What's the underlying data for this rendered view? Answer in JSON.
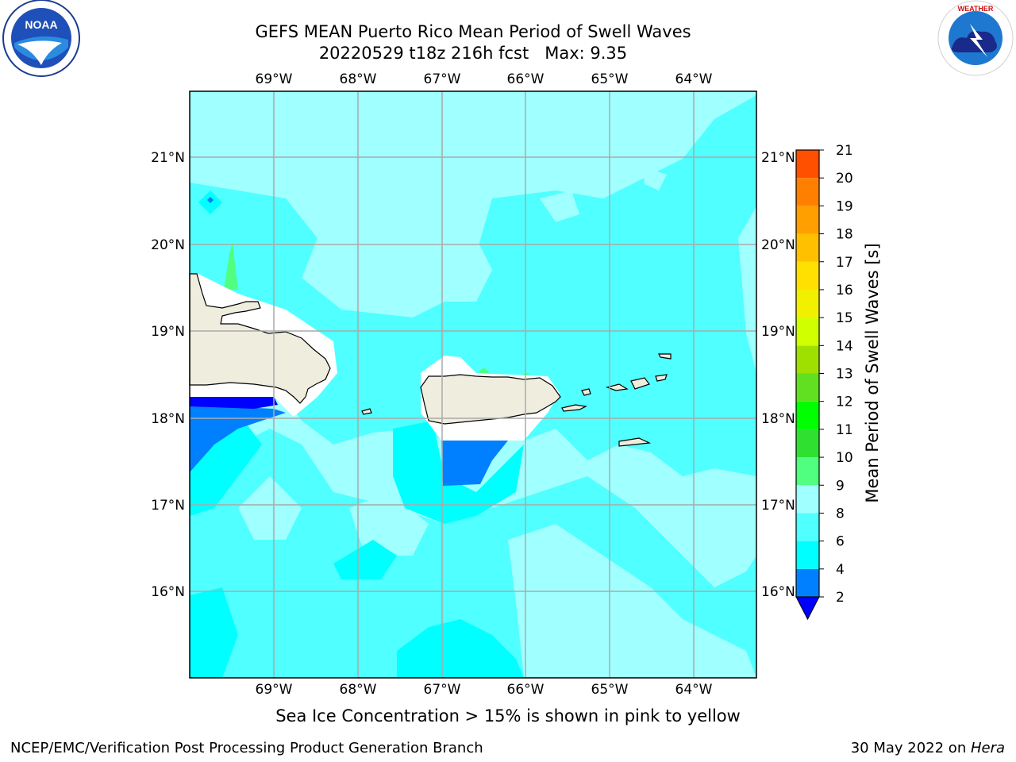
{
  "title": {
    "line1": "GEFS MEAN Puerto Rico Mean Period of Swell Waves",
    "line2": "20220529 t18z 216h fcst   Max: 9.35"
  },
  "logos": {
    "left": "NOAA",
    "right": "NATIONAL WEATHER SERVICE"
  },
  "map": {
    "lon_labels": [
      "69°W",
      "68°W",
      "67°W",
      "66°W",
      "65°W",
      "64°W"
    ],
    "lat_labels": [
      "21°N",
      "20°N",
      "19°N",
      "18°N",
      "17°N",
      "16°N"
    ],
    "lon_range": [
      -69.9,
      -63.3
    ],
    "lat_range": [
      15.0,
      21.75
    ]
  },
  "colorbar": {
    "title": "Mean Period of Swell Waves [s]",
    "levels": [
      "2",
      "4",
      "6",
      "8",
      "9",
      "10",
      "11",
      "12",
      "13",
      "14",
      "15",
      "16",
      "17",
      "18",
      "19",
      "20",
      "21"
    ],
    "colors": [
      "#0080ff",
      "#00ffff",
      "#50ffff",
      "#a0ffff",
      "#50ff80",
      "#30e030",
      "#00ff00",
      "#60e020",
      "#a0e000",
      "#d0ff00",
      "#f0f000",
      "#ffe000",
      "#ffc000",
      "#ffa000",
      "#ff8000",
      "#ff5000",
      "#ff2000",
      "#ff0000"
    ],
    "under_color": "#0000ff"
  },
  "note": "Sea Ice Concentration > 15% is shown in pink to yellow",
  "footer": {
    "left": "NCEP/EMC/Verification Post Processing Product Generation Branch",
    "right_prefix": "30 May 2022 on ",
    "right_machine": "Hera"
  }
}
